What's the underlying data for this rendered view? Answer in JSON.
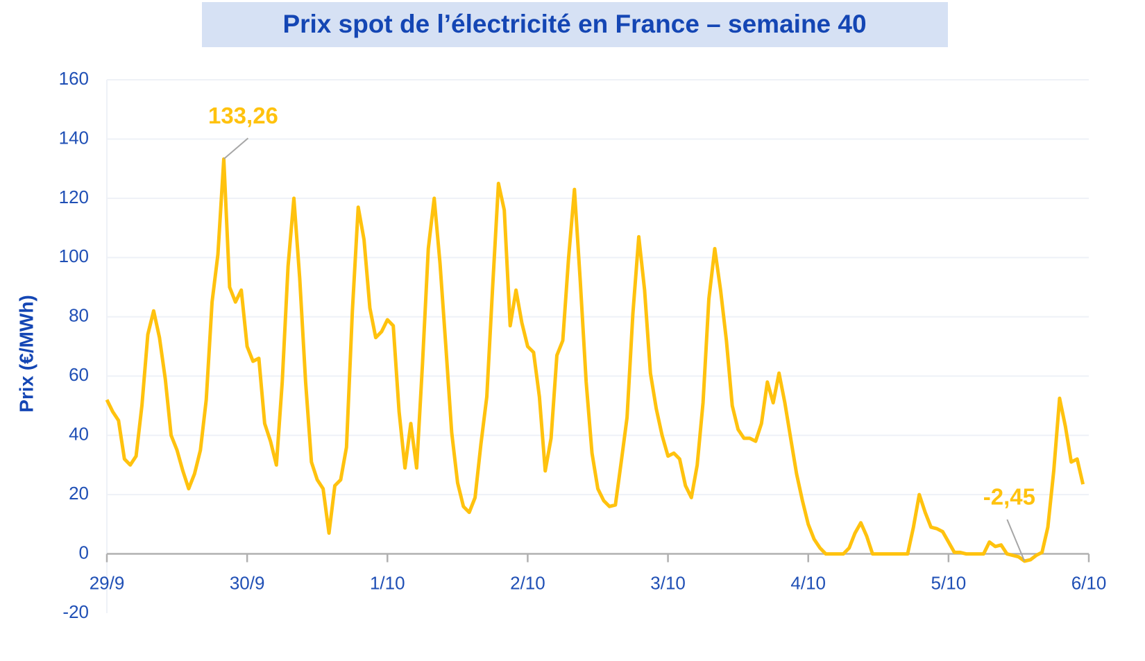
{
  "chart_data": {
    "type": "line",
    "title": "Prix spot de l’électricité en France – semaine 40",
    "y_label": "Prix (€/MWh)",
    "categories": [
      "29/9",
      null,
      null,
      null,
      null,
      null,
      null,
      null,
      null,
      null,
      null,
      null,
      null,
      null,
      null,
      null,
      null,
      null,
      null,
      null,
      null,
      null,
      null,
      null,
      "30/9",
      null,
      null,
      null,
      null,
      null,
      null,
      null,
      null,
      null,
      null,
      null,
      null,
      null,
      null,
      null,
      null,
      null,
      null,
      null,
      null,
      null,
      null,
      null,
      "1/10",
      null,
      null,
      null,
      null,
      null,
      null,
      null,
      null,
      null,
      null,
      null,
      null,
      null,
      null,
      null,
      null,
      null,
      null,
      null,
      null,
      null,
      null,
      null,
      "2/10",
      null,
      null,
      null,
      null,
      null,
      null,
      null,
      null,
      null,
      null,
      null,
      null,
      null,
      null,
      null,
      null,
      null,
      null,
      null,
      null,
      null,
      null,
      null,
      "3/10",
      null,
      null,
      null,
      null,
      null,
      null,
      null,
      null,
      null,
      null,
      null,
      null,
      null,
      null,
      null,
      null,
      null,
      null,
      null,
      null,
      null,
      null,
      null,
      "4/10",
      null,
      null,
      null,
      null,
      null,
      null,
      null,
      null,
      null,
      null,
      null,
      null,
      null,
      null,
      null,
      null,
      null,
      null,
      null,
      null,
      null,
      null,
      null,
      "5/10",
      null,
      null,
      null,
      null,
      null,
      null,
      null,
      null,
      null,
      null,
      null,
      null,
      null,
      null,
      null,
      null,
      null,
      null,
      null,
      null,
      null,
      null,
      null,
      "6/10"
    ],
    "values": [
      52,
      48,
      45,
      32,
      30,
      33,
      50,
      74,
      82,
      73,
      59,
      40,
      35,
      28,
      22,
      27,
      35,
      52,
      85,
      101,
      133.26,
      90,
      85,
      89,
      70,
      65,
      66,
      44,
      38,
      30,
      58,
      97,
      120,
      93,
      58,
      31,
      25,
      22,
      7,
      23,
      25,
      36,
      82,
      117,
      106,
      83,
      73,
      75,
      79,
      77,
      48,
      29,
      44,
      29,
      64,
      103,
      120,
      98,
      70,
      41,
      24,
      16,
      14,
      19,
      37,
      53,
      90,
      125,
      116,
      77,
      89,
      78,
      70,
      68,
      53,
      28,
      39,
      67,
      72,
      100,
      123,
      92,
      58,
      34,
      22,
      18,
      16,
      16.5,
      31,
      46,
      81,
      107,
      89,
      61,
      49,
      40,
      33,
      34,
      32,
      23,
      19,
      30,
      51,
      86,
      103,
      89,
      72,
      50,
      42,
      39,
      39,
      38,
      44,
      58,
      51,
      61,
      51,
      39,
      27,
      18,
      10,
      5,
      2,
      0,
      0,
      0,
      0,
      2,
      7,
      10.5,
      6,
      0,
      0,
      0,
      0,
      0,
      0,
      0,
      9,
      20,
      14,
      9,
      8.5,
      7.5,
      4,
      0.5,
      0.5,
      0,
      0,
      0,
      0,
      4,
      2.5,
      3,
      0,
      -0.5,
      -1,
      -2.45,
      -2,
      -0.5,
      0.5,
      9,
      28,
      52.5,
      43,
      31,
      32,
      23.5,
      null
    ],
    "value_labels": [
      null,
      null,
      null,
      null,
      null,
      null,
      null,
      null,
      null,
      null,
      null,
      null,
      null,
      null,
      null,
      null,
      null,
      null,
      null,
      null,
      "133,26",
      null,
      null,
      null,
      null,
      null,
      null,
      null,
      null,
      null,
      null,
      null,
      null,
      null,
      null,
      null,
      null,
      null,
      null,
      null,
      null,
      null,
      null,
      null,
      null,
      null,
      null,
      null,
      null,
      null,
      null,
      null,
      null,
      null,
      null,
      null,
      null,
      null,
      null,
      null,
      null,
      null,
      null,
      null,
      null,
      null,
      null,
      null,
      null,
      null,
      null,
      null,
      null,
      null,
      null,
      null,
      null,
      null,
      null,
      null,
      null,
      null,
      null,
      null,
      null,
      null,
      null,
      null,
      null,
      null,
      null,
      null,
      null,
      null,
      null,
      null,
      null,
      null,
      null,
      null,
      null,
      null,
      null,
      null,
      null,
      null,
      null,
      null,
      null,
      null,
      null,
      null,
      null,
      null,
      null,
      null,
      null,
      null,
      null,
      null,
      null,
      null,
      null,
      null,
      null,
      null,
      null,
      null,
      null,
      null,
      null,
      null,
      null,
      null,
      null,
      null,
      null,
      null,
      null,
      null,
      null,
      null,
      null,
      null,
      null,
      null,
      null,
      null,
      null,
      null,
      null,
      null,
      null,
      null,
      null,
      null,
      null,
      "-2,45",
      null,
      null,
      null,
      null,
      null,
      null,
      null,
      null,
      null,
      null,
      null
    ],
    "color": "#ffc20e",
    "ylim": [
      -20,
      160
    ],
    "yticks": [
      -20,
      0,
      20,
      40,
      60,
      80,
      100,
      120,
      140,
      160
    ],
    "grid": true
  }
}
